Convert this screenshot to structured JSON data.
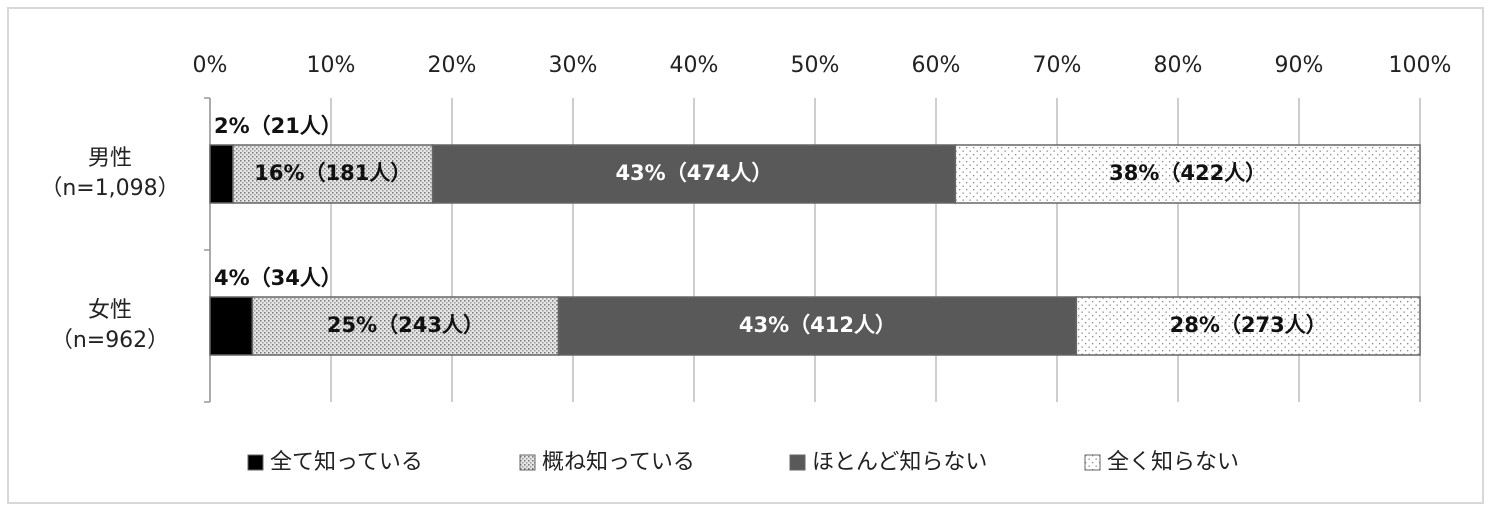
{
  "chart_data": {
    "type": "stacked-bar-horizontal",
    "categories": [
      "男性\n（n=1,098）",
      "女性\n（n=962）"
    ],
    "xlim": [
      0,
      100
    ],
    "xticks": [
      {
        "value": 0,
        "label": "0%"
      },
      {
        "value": 10,
        "label": "10%"
      },
      {
        "value": 20,
        "label": "20%"
      },
      {
        "value": 30,
        "label": "30%"
      },
      {
        "value": 40,
        "label": "40%"
      },
      {
        "value": 50,
        "label": "50%"
      },
      {
        "value": 60,
        "label": "60%"
      },
      {
        "value": 70,
        "label": "70%"
      },
      {
        "value": 80,
        "label": "80%"
      },
      {
        "value": 90,
        "label": "90%"
      },
      {
        "value": 100,
        "label": "100%"
      }
    ],
    "grid": true,
    "legend": "bottom",
    "series": [
      {
        "name": "全て知っている",
        "color": "#000000",
        "pattern": "solid",
        "values": [
          1.9,
          3.5
        ],
        "value_labels": [
          "2%（21人）",
          "4%（34人）"
        ]
      },
      {
        "name": "概ね知っている",
        "color": "#d0d0d0",
        "pattern": "dense-dots",
        "values": [
          16.5,
          25.3
        ],
        "value_labels": [
          "16%（181人）",
          "25%（243人）"
        ]
      },
      {
        "name": "ほとんど知らない",
        "color": "#595959",
        "pattern": "solid",
        "values": [
          43.2,
          42.8
        ],
        "value_labels": [
          "43%（474人）",
          "43%（412人）"
        ]
      },
      {
        "name": "全く知らない",
        "color": "#ffffff",
        "pattern": "sparse-dots",
        "values": [
          38.4,
          28.4
        ],
        "value_labels": [
          "38%（422人）",
          "28%（273人）"
        ]
      }
    ]
  }
}
